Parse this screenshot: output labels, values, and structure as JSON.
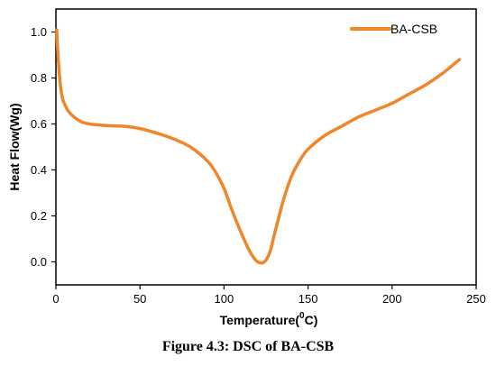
{
  "caption": "Figure 4.3: DSC of BA-CSB",
  "chart_data": {
    "type": "line",
    "xlabel_main": "Temperature(",
    "xlabel_sup": "0",
    "xlabel_end": "C)",
    "ylabel": "Heat Flow(Wg)",
    "xlim": [
      0,
      250
    ],
    "ylim": [
      -0.1,
      1.1
    ],
    "xticks": [
      0,
      50,
      100,
      150,
      200,
      250
    ],
    "yticks": [
      0.0,
      0.2,
      0.4,
      0.6,
      0.8,
      1.0
    ],
    "xtick_labels": [
      "0",
      "50",
      "100",
      "150",
      "200",
      "250"
    ],
    "ytick_labels": [
      "0.0",
      "0.2",
      "0.4",
      "0.6",
      "0.8",
      "1.0"
    ],
    "grid": false,
    "legend_position": "top-right",
    "series": [
      {
        "name": "BA-CSB",
        "color": "#F0862A",
        "x": [
          0.5,
          1,
          2,
          3,
          4,
          5,
          7,
          10,
          15,
          20,
          30,
          40,
          50,
          60,
          70,
          80,
          90,
          95,
          100,
          105,
          110,
          115,
          118,
          120,
          122,
          124,
          126,
          128,
          130,
          135,
          140,
          145,
          150,
          160,
          170,
          180,
          190,
          200,
          210,
          220,
          230,
          240
        ],
        "y": [
          1.01,
          0.93,
          0.82,
          0.75,
          0.71,
          0.69,
          0.66,
          0.635,
          0.61,
          0.6,
          0.593,
          0.59,
          0.58,
          0.56,
          0.535,
          0.5,
          0.44,
          0.39,
          0.32,
          0.22,
          0.13,
          0.05,
          0.015,
          0.0,
          -0.005,
          0.0,
          0.02,
          0.06,
          0.12,
          0.26,
          0.37,
          0.44,
          0.49,
          0.55,
          0.59,
          0.63,
          0.66,
          0.69,
          0.73,
          0.77,
          0.82,
          0.88
        ]
      }
    ]
  }
}
